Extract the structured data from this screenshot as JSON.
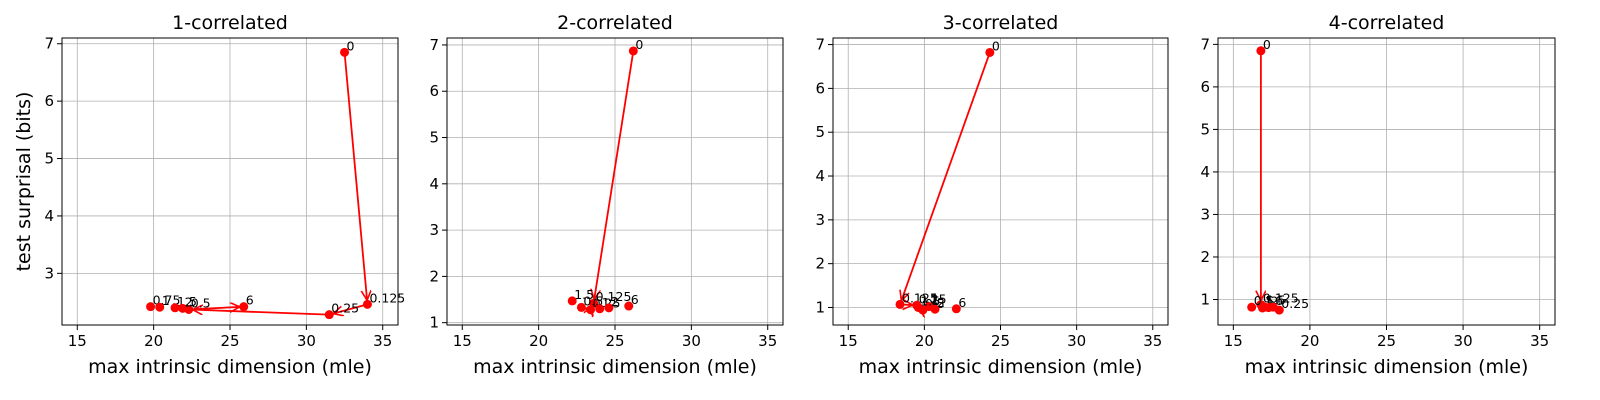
{
  "chart_data": [
    {
      "type": "scatter",
      "title": "1-correlated",
      "xlabel": "max intrinsic dimension (mle)",
      "ylabel": "test surprisal (bits)",
      "xlim": [
        14,
        36
      ],
      "ylim": [
        2.1,
        7.1
      ],
      "xticks": [
        15,
        20,
        25,
        30,
        35
      ],
      "yticks": [
        3,
        4,
        5,
        6,
        7
      ],
      "grid": true,
      "color": "#ff0000",
      "points": [
        {
          "label": "0",
          "x": 32.5,
          "y": 6.85
        },
        {
          "label": "0.125",
          "x": 34.0,
          "y": 2.46
        },
        {
          "label": "0.25",
          "x": 31.5,
          "y": 2.28
        },
        {
          "label": "0.5",
          "x": 22.3,
          "y": 2.37
        },
        {
          "label": "0.75",
          "x": 19.8,
          "y": 2.42
        },
        {
          "label": "1",
          "x": 20.4,
          "y": 2.41
        },
        {
          "label": "1.5",
          "x": 21.4,
          "y": 2.4
        },
        {
          "label": "2",
          "x": 21.9,
          "y": 2.39
        },
        {
          "label": "6",
          "x": 25.9,
          "y": 2.42
        }
      ],
      "arrows": [
        [
          0,
          1
        ],
        [
          1,
          2
        ],
        [
          2,
          3
        ],
        [
          3,
          8
        ]
      ]
    },
    {
      "type": "scatter",
      "title": "2-correlated",
      "xlabel": "max intrinsic dimension (mle)",
      "ylabel": "",
      "xlim": [
        14,
        36
      ],
      "ylim": [
        0.95,
        7.15
      ],
      "xticks": [
        15,
        20,
        25,
        30,
        35
      ],
      "yticks": [
        1,
        2,
        3,
        4,
        5,
        6,
        7
      ],
      "grid": true,
      "color": "#ff0000",
      "points": [
        {
          "label": "0",
          "x": 26.2,
          "y": 6.87
        },
        {
          "label": "0.125",
          "x": 23.6,
          "y": 1.42
        },
        {
          "label": "0.25",
          "x": 23.4,
          "y": 1.28
        },
        {
          "label": "0.5",
          "x": 22.8,
          "y": 1.33
        },
        {
          "label": "1",
          "x": 24.0,
          "y": 1.3
        },
        {
          "label": "1.5",
          "x": 22.2,
          "y": 1.47
        },
        {
          "label": "2",
          "x": 24.6,
          "y": 1.32
        },
        {
          "label": "6",
          "x": 25.9,
          "y": 1.36
        }
      ],
      "arrows": [
        [
          0,
          1
        ],
        [
          1,
          2
        ],
        [
          2,
          3
        ]
      ]
    },
    {
      "type": "scatter",
      "title": "3-correlated",
      "xlabel": "max intrinsic dimension (mle)",
      "ylabel": "",
      "xlim": [
        14,
        36
      ],
      "ylim": [
        0.6,
        7.15
      ],
      "xticks": [
        15,
        20,
        25,
        30,
        35
      ],
      "yticks": [
        1,
        2,
        3,
        4,
        5,
        6,
        7
      ],
      "grid": true,
      "color": "#ff0000",
      "points": [
        {
          "label": "0",
          "x": 24.3,
          "y": 6.82
        },
        {
          "label": "0.125",
          "x": 18.4,
          "y": 1.07
        },
        {
          "label": "0.25",
          "x": 19.5,
          "y": 1.05
        },
        {
          "label": "0.5",
          "x": 19.9,
          "y": 0.94
        },
        {
          "label": "1",
          "x": 20.3,
          "y": 1.02
        },
        {
          "label": "1.5",
          "x": 19.6,
          "y": 1.0
        },
        {
          "label": "2",
          "x": 20.7,
          "y": 0.96
        },
        {
          "label": "6",
          "x": 22.1,
          "y": 0.97
        }
      ],
      "arrows": [
        [
          0,
          1
        ],
        [
          1,
          2
        ],
        [
          2,
          3
        ]
      ]
    },
    {
      "type": "scatter",
      "title": "4-correlated",
      "xlabel": "max intrinsic dimension (mle)",
      "ylabel": "",
      "xlim": [
        14,
        36
      ],
      "ylim": [
        0.4,
        7.15
      ],
      "xticks": [
        15,
        20,
        25,
        30,
        35
      ],
      "yticks": [
        1,
        2,
        3,
        4,
        5,
        6,
        7
      ],
      "grid": true,
      "color": "#ff0000",
      "points": [
        {
          "label": "0",
          "x": 16.8,
          "y": 6.85
        },
        {
          "label": "0.125",
          "x": 16.8,
          "y": 0.88
        },
        {
          "label": "0.25",
          "x": 18.0,
          "y": 0.75
        },
        {
          "label": "0.5",
          "x": 16.2,
          "y": 0.82
        },
        {
          "label": "1",
          "x": 16.9,
          "y": 0.8
        },
        {
          "label": "1.5",
          "x": 17.0,
          "y": 0.83
        },
        {
          "label": "2",
          "x": 17.3,
          "y": 0.81
        },
        {
          "label": "6",
          "x": 17.6,
          "y": 0.82
        }
      ],
      "arrows": [
        [
          0,
          1
        ],
        [
          1,
          2
        ]
      ]
    }
  ]
}
